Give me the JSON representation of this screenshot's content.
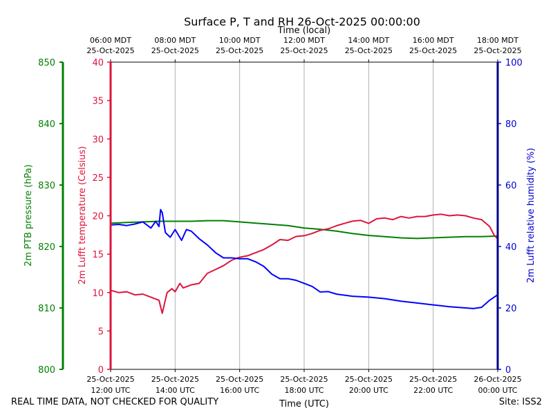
{
  "chart_data": {
    "type": "line",
    "title": "Surface P, T and RH 26-Oct-2025 00:00:00",
    "top_axis_title": "Time (local)",
    "xlabel": "Time (UTC)",
    "footer_left": "REAL TIME DATA, NOT CHECKED FOR QUALITY",
    "footer_right": "Site: ISS2",
    "x_range_hours_utc": [
      12,
      24
    ],
    "bottom_ticks": [
      {
        "h": 12,
        "l1": "25-Oct-2025",
        "l2": "12:00 UTC"
      },
      {
        "h": 14,
        "l1": "25-Oct-2025",
        "l2": "14:00 UTC"
      },
      {
        "h": 16,
        "l1": "25-Oct-2025",
        "l2": "16:00 UTC"
      },
      {
        "h": 18,
        "l1": "25-Oct-2025",
        "l2": "18:00 UTC"
      },
      {
        "h": 20,
        "l1": "25-Oct-2025",
        "l2": "20:00 UTC"
      },
      {
        "h": 22,
        "l1": "25-Oct-2025",
        "l2": "22:00 UTC"
      },
      {
        "h": 24,
        "l1": "26-Oct-2025",
        "l2": "00:00 UTC"
      }
    ],
    "top_ticks": [
      {
        "h": 12,
        "l1": "06:00 MDT",
        "l2": "25-Oct-2025"
      },
      {
        "h": 14,
        "l1": "08:00 MDT",
        "l2": "25-Oct-2025"
      },
      {
        "h": 16,
        "l1": "10:00 MDT",
        "l2": "25-Oct-2025"
      },
      {
        "h": 18,
        "l1": "12:00 MDT",
        "l2": "25-Oct-2025"
      },
      {
        "h": 20,
        "l1": "14:00 MDT",
        "l2": "25-Oct-2025"
      },
      {
        "h": 22,
        "l1": "16:00 MDT",
        "l2": "25-Oct-2025"
      },
      {
        "h": 24,
        "l1": "18:00 MDT",
        "l2": "25-Oct-2025"
      }
    ],
    "axes": {
      "pressure": {
        "label": "2m PTB pressure (hPa)",
        "color": "#008000",
        "lim": [
          800,
          850
        ],
        "ticks": [
          800,
          810,
          820,
          830,
          840,
          850
        ]
      },
      "temperature": {
        "label": "2m Lufft temperature (Celsius)",
        "color": "#dc143c",
        "lim": [
          0,
          40
        ],
        "ticks": [
          0,
          5,
          10,
          15,
          20,
          25,
          30,
          35,
          40
        ]
      },
      "humidity": {
        "label": "2m Lufft relative humidity (%)",
        "color": "#0000cd",
        "lim": [
          0,
          100
        ],
        "ticks": [
          0,
          20,
          40,
          60,
          80,
          100
        ]
      }
    },
    "series": [
      {
        "name": "2m PTB pressure",
        "axis": "pressure",
        "color": "#008000",
        "x": [
          12.0,
          12.5,
          13.0,
          13.5,
          14.0,
          14.5,
          15.0,
          15.5,
          16.0,
          16.5,
          17.0,
          17.5,
          18.0,
          18.5,
          19.0,
          19.5,
          20.0,
          20.5,
          21.0,
          21.5,
          22.0,
          22.5,
          23.0,
          23.5,
          24.0
        ],
        "values": [
          823.8,
          823.9,
          824.0,
          824.1,
          824.1,
          824.1,
          824.2,
          824.2,
          824.0,
          823.8,
          823.6,
          823.4,
          823.0,
          822.8,
          822.5,
          822.1,
          821.8,
          821.6,
          821.4,
          821.3,
          821.4,
          821.5,
          821.6,
          821.6,
          821.7
        ]
      },
      {
        "name": "2m Lufft temperature",
        "axis": "temperature",
        "color": "#dc143c",
        "x": [
          12.0,
          12.25,
          12.5,
          12.75,
          13.0,
          13.25,
          13.5,
          13.6,
          13.75,
          13.9,
          14.0,
          14.15,
          14.25,
          14.5,
          14.75,
          15.0,
          15.25,
          15.5,
          15.75,
          16.0,
          16.25,
          16.5,
          16.75,
          17.0,
          17.25,
          17.5,
          17.75,
          18.0,
          18.25,
          18.5,
          18.75,
          19.0,
          19.25,
          19.5,
          19.75,
          20.0,
          20.25,
          20.5,
          20.75,
          21.0,
          21.25,
          21.5,
          21.75,
          22.0,
          22.25,
          22.5,
          22.75,
          23.0,
          23.25,
          23.5,
          23.75,
          23.9,
          24.0
        ],
        "values": [
          10.3,
          10.0,
          10.1,
          9.7,
          9.8,
          9.4,
          9.0,
          7.3,
          10.0,
          10.5,
          10.1,
          11.2,
          10.6,
          11.0,
          11.2,
          12.5,
          13.0,
          13.5,
          14.2,
          14.6,
          14.8,
          15.2,
          15.6,
          16.2,
          16.9,
          16.8,
          17.3,
          17.4,
          17.7,
          18.1,
          18.3,
          18.7,
          19.0,
          19.3,
          19.4,
          19.0,
          19.6,
          19.7,
          19.5,
          19.9,
          19.7,
          19.9,
          19.9,
          20.1,
          20.2,
          20.0,
          20.1,
          20.0,
          19.7,
          19.5,
          18.6,
          17.4,
          17.0
        ]
      },
      {
        "name": "2m Lufft relative humidity",
        "axis": "humidity",
        "color": "#0000ff",
        "x": [
          12.0,
          12.25,
          12.5,
          12.75,
          13.0,
          13.25,
          13.4,
          13.5,
          13.55,
          13.6,
          13.7,
          13.85,
          14.0,
          14.2,
          14.35,
          14.5,
          14.75,
          15.0,
          15.25,
          15.5,
          15.75,
          16.0,
          16.25,
          16.5,
          16.75,
          17.0,
          17.25,
          17.5,
          17.75,
          18.0,
          18.25,
          18.5,
          18.75,
          19.0,
          19.5,
          20.0,
          20.5,
          21.0,
          21.5,
          22.0,
          22.5,
          23.0,
          23.25,
          23.5,
          23.75,
          24.0
        ],
        "values": [
          47.0,
          47.2,
          46.8,
          47.3,
          48.0,
          46.0,
          48.2,
          46.5,
          52.0,
          51.0,
          44.5,
          43.0,
          45.5,
          42.0,
          45.5,
          45.0,
          42.5,
          40.5,
          38.0,
          36.3,
          36.3,
          36.0,
          36.0,
          35.0,
          33.5,
          31.0,
          29.5,
          29.5,
          29.0,
          28.0,
          27.0,
          25.2,
          25.3,
          24.5,
          23.8,
          23.5,
          23.0,
          22.2,
          21.6,
          21.0,
          20.4,
          20.0,
          19.8,
          20.2,
          22.5,
          24.3
        ]
      }
    ]
  }
}
